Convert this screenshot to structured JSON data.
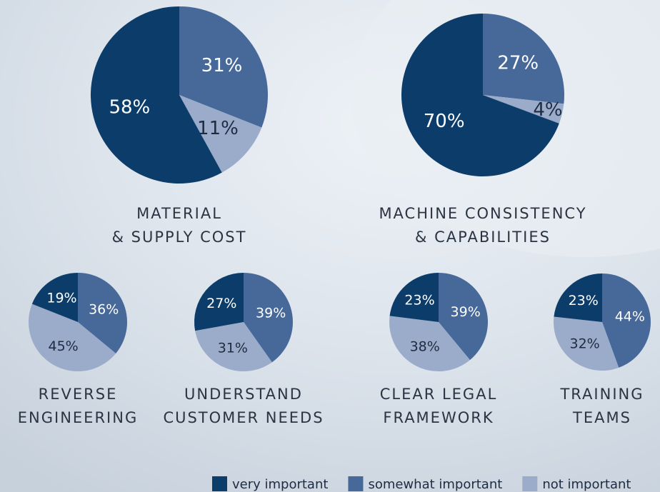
{
  "legend": {
    "series": [
      {
        "name": "very important",
        "color": "#0c3d6a"
      },
      {
        "name": "somewhat important",
        "color": "#46699a"
      },
      {
        "name": "not important",
        "color": "#9baccb"
      }
    ]
  },
  "chart_data": [
    {
      "type": "pie",
      "title": [
        "MATERIAL",
        "& SUPPLY COST"
      ],
      "values": [
        58,
        31,
        11
      ],
      "value_labels": [
        "58%",
        "31%",
        "11%"
      ]
    },
    {
      "type": "pie",
      "title": [
        "MACHINE CONSISTENCY",
        "& CAPABILITIES"
      ],
      "values": [
        70,
        27,
        4
      ],
      "value_labels": [
        "70%",
        "27%",
        "4%"
      ]
    },
    {
      "type": "pie",
      "title": [
        "REVERSE",
        "ENGINEERING"
      ],
      "values": [
        19,
        36,
        45
      ],
      "value_labels": [
        "19%",
        "36%",
        "45%"
      ]
    },
    {
      "type": "pie",
      "title": [
        "UNDERSTAND",
        "CUSTOMER NEEDS"
      ],
      "values": [
        27,
        39,
        31
      ],
      "value_labels": [
        "27%",
        "39%",
        "31%"
      ]
    },
    {
      "type": "pie",
      "title": [
        "CLEAR LEGAL",
        "FRAMEWORK"
      ],
      "values": [
        23,
        39,
        38
      ],
      "value_labels": [
        "23%",
        "39%",
        "38%"
      ]
    },
    {
      "type": "pie",
      "title": [
        "TRAINING",
        "TEAMS"
      ],
      "values": [
        23,
        44,
        32
      ],
      "value_labels": [
        "23%",
        "44%",
        "32%"
      ]
    }
  ]
}
